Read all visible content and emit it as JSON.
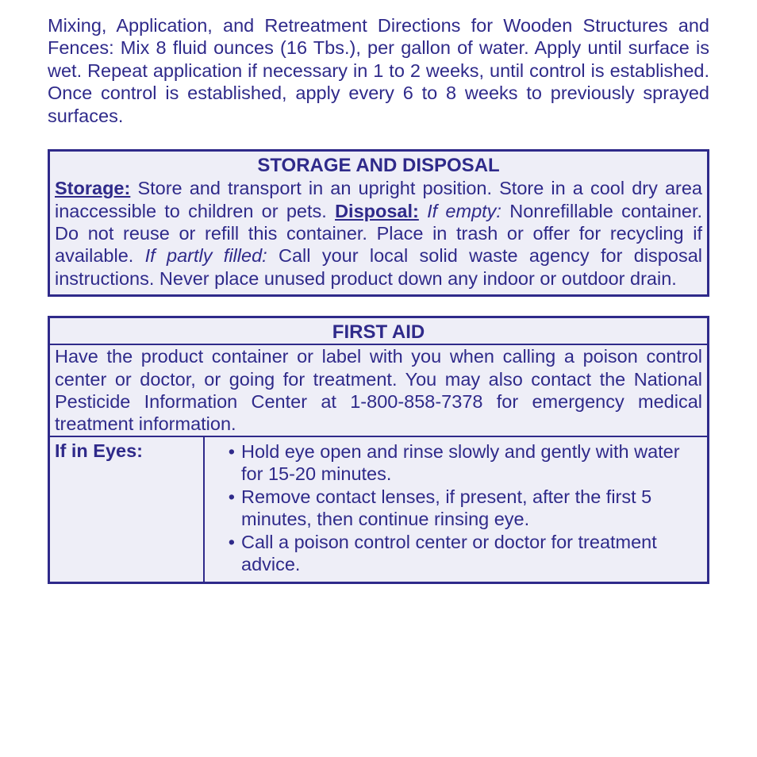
{
  "colors": {
    "text": "#2f2a8a",
    "border": "#2f2a8a",
    "box_bg": "#eeeef7"
  },
  "intro": "Mixing, Application, and Retreatment Directions for Wooden Structures and Fences: Mix 8 fluid ounces (16 Tbs.), per gallon of water. Apply until surface is wet. Repeat application if necessary in 1 to 2 weeks, until control is established. Once control is established, apply every 6 to 8 weeks to previously sprayed surfaces.",
  "storage": {
    "title": "STORAGE AND DISPOSAL",
    "storage_label": "Storage:",
    "storage_text": " Store and transport in an upright position. Store in a cool dry area inaccessible to children or pets. ",
    "disposal_label": "Disposal:",
    "if_empty_label": " If empty: ",
    "if_empty_text": "Nonrefillable container. Do not reuse or refill this container. Place in trash or offer for recycling if available. ",
    "if_partly_label": "If partly filled: ",
    "if_partly_text": "Call your local solid waste agency for disposal instructions. Never place unused product down any indoor or outdoor drain."
  },
  "firstaid": {
    "title": "FIRST AID",
    "head": "Have the product container or label with you when calling a poison control center or doctor, or going for treatment. You may also contact the National Pesticide Information Center at 1-800-858-7378 for emergency medical treatment information.",
    "row_label": " If in Eyes:",
    "bullets": [
      "Hold eye open and rinse slowly and gently with water for 15-20 minutes.",
      "Remove contact lenses, if present, after the first 5 minutes, then continue rinsing eye.",
      "Call a poison control center or doctor for treatment advice."
    ]
  }
}
